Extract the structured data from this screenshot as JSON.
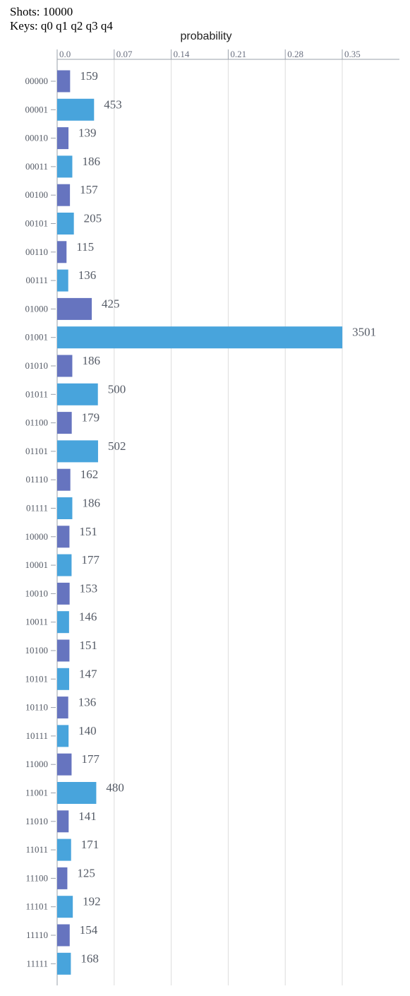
{
  "header": {
    "shots_label": "Shots:",
    "shots_value": "10000",
    "keys_label": "Keys:",
    "keys_value": "q0 q1 q2 q3 q4"
  },
  "chart_data": {
    "type": "bar",
    "orientation": "horizontal",
    "xlabel": "probability",
    "xlim": [
      0,
      0.38
    ],
    "xticks": [
      0.0,
      0.07,
      0.14,
      0.21,
      0.28,
      0.35
    ],
    "xtick_labels": [
      "0.0",
      "0.07",
      "0.14",
      "0.21",
      "0.28",
      "0.35"
    ],
    "grid": true,
    "colors": [
      "#6674bf",
      "#48a4dc"
    ],
    "categories": [
      "00000",
      "00001",
      "00010",
      "00011",
      "00100",
      "00101",
      "00110",
      "00111",
      "01000",
      "01001",
      "01010",
      "01011",
      "01100",
      "01101",
      "01110",
      "01111",
      "10000",
      "10001",
      "10010",
      "10011",
      "10100",
      "10101",
      "10110",
      "10111",
      "11000",
      "11001",
      "11010",
      "11011",
      "11100",
      "11101",
      "11110",
      "11111"
    ],
    "counts": [
      159,
      453,
      139,
      186,
      157,
      205,
      115,
      136,
      425,
      3501,
      186,
      500,
      179,
      502,
      162,
      186,
      151,
      177,
      153,
      146,
      151,
      147,
      136,
      140,
      177,
      480,
      141,
      171,
      125,
      192,
      154,
      168
    ],
    "total_shots": 10000
  }
}
